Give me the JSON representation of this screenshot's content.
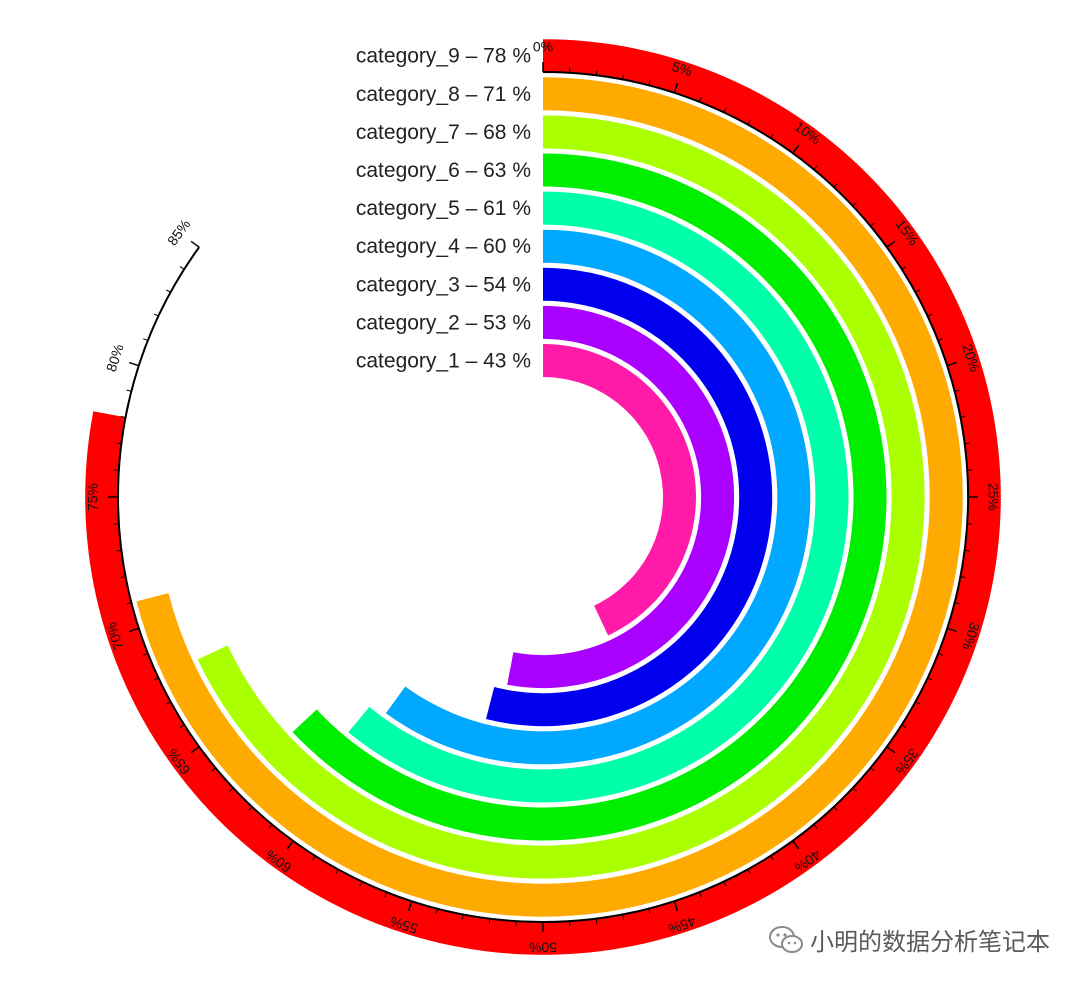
{
  "chart_data": {
    "type": "radial-bar",
    "axis_max_percent": 85,
    "tick_labels": [
      "0%",
      "5%",
      "10%",
      "15%",
      "20%",
      "25%",
      "30%",
      "35%",
      "40%",
      "45%",
      "50%",
      "55%",
      "60%",
      "65%",
      "70%",
      "75%",
      "80%",
      "85%"
    ],
    "series": [
      {
        "category": "category_1",
        "value": 43,
        "label": "category_1  –  43 %",
        "color": "#ff1aa8"
      },
      {
        "category": "category_2",
        "value": 53,
        "label": "category_2  –  53 %",
        "color": "#aa00ff"
      },
      {
        "category": "category_3",
        "value": 54,
        "label": "category_3  –  54 %",
        "color": "#0000ee"
      },
      {
        "category": "category_4",
        "value": 60,
        "label": "category_4  –  60 %",
        "color": "#00a8ff"
      },
      {
        "category": "category_5",
        "value": 61,
        "label": "category_5  –  61 %",
        "color": "#00ffaa"
      },
      {
        "category": "category_6",
        "value": 63,
        "label": "category_6  –  63 %",
        "color": "#00ee00"
      },
      {
        "category": "category_7",
        "value": 68,
        "label": "category_7  –  68 %",
        "color": "#aaff00"
      },
      {
        "category": "category_8",
        "value": 71,
        "label": "category_8  –  71 %",
        "color": "#ffaa00"
      },
      {
        "category": "category_9",
        "value": 78,
        "label": "category_9  –  78 %",
        "color": "#ff0000"
      }
    ]
  },
  "watermark": {
    "text": "小明的数据分析笔记本",
    "icon": "wechat-icon"
  }
}
